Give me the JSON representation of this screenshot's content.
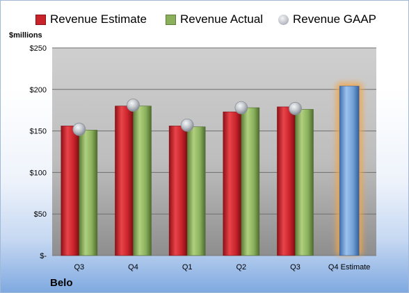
{
  "company": "Belo",
  "units_label": "$millions",
  "legend": [
    {
      "key": "estimate",
      "label": "Revenue Estimate"
    },
    {
      "key": "actual",
      "label": "Revenue Actual"
    },
    {
      "key": "gaap",
      "label": "Revenue GAAP"
    }
  ],
  "colors": {
    "estimate": "#c8232a",
    "actual": "#8ab05c",
    "gaap": "#b4b8bf",
    "forecast_bar": "#6f9fd6",
    "forecast_glow": "#f2a64a"
  },
  "chart_data": {
    "type": "bar",
    "categories": [
      "Q3",
      "Q4",
      "Q1",
      "Q2",
      "Q3",
      "Q4 Estimate"
    ],
    "series": [
      {
        "name": "Revenue Estimate",
        "values": [
          156,
          180,
          156,
          173,
          179,
          null
        ]
      },
      {
        "name": "Revenue Actual",
        "values": [
          151,
          180,
          155,
          178,
          176,
          204
        ]
      },
      {
        "name": "Revenue GAAP",
        "values": [
          152,
          181,
          157,
          178,
          177,
          null
        ]
      }
    ],
    "y_tick_labels": [
      "$-",
      "$50",
      "$100",
      "$150",
      "$200",
      "$250"
    ],
    "ylim": [
      0,
      250
    ],
    "y_ticks": [
      0,
      50,
      100,
      150,
      200,
      250
    ],
    "ylabel": "$millions",
    "grid": true,
    "legend_position": "top"
  }
}
